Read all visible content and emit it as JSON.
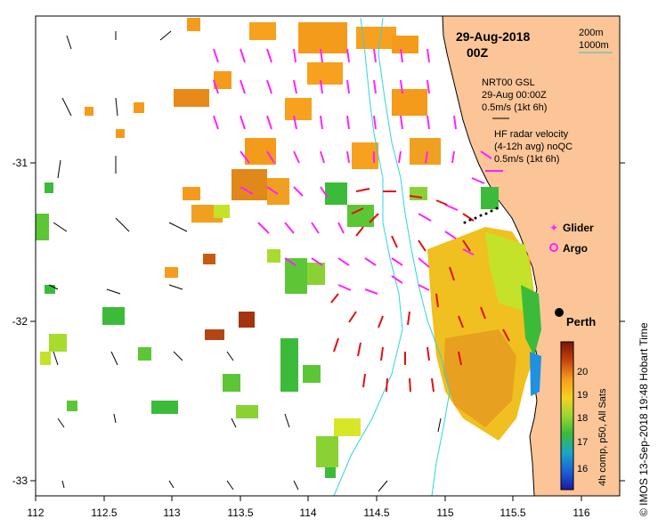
{
  "map": {
    "date_title": "29-Aug-2018",
    "time_title": "00Z",
    "scale_200": "200m",
    "scale_1000": "1000m",
    "nrt_title": "NRT00 GSL",
    "nrt_time": "29-Aug 00:00Z",
    "nrt_scale": "0.5m/s (1kt 6h)",
    "hf_title": "HF radar velocity",
    "hf_sub": "(4-12h avg) noQC",
    "hf_scale": "0.5m/s (1kt 6h)",
    "glider_label": "Glider",
    "argo_label": "Argo",
    "city": "Perth",
    "colorbar_label": "4h comp, p50, All Sats",
    "colorbar_ticks": [
      "20",
      "19",
      "18",
      "17",
      "16"
    ],
    "credit": "© IMOS 13-Sep-2018 19:48 Hobart Time",
    "x_ticks": [
      "112",
      "112.5",
      "113",
      "113.5",
      "114",
      "114.5",
      "115",
      "115.5",
      "116"
    ],
    "y_ticks": [
      "-31",
      "-32",
      "-33"
    ],
    "colors": {
      "land": "#fbc597",
      "bathy": "#2ed4e0",
      "radar_arrow": "#ff22ff",
      "model_arrow": "#000000",
      "warm_arrow": "#e01010",
      "scale_line": "#2bc8b8"
    }
  }
}
